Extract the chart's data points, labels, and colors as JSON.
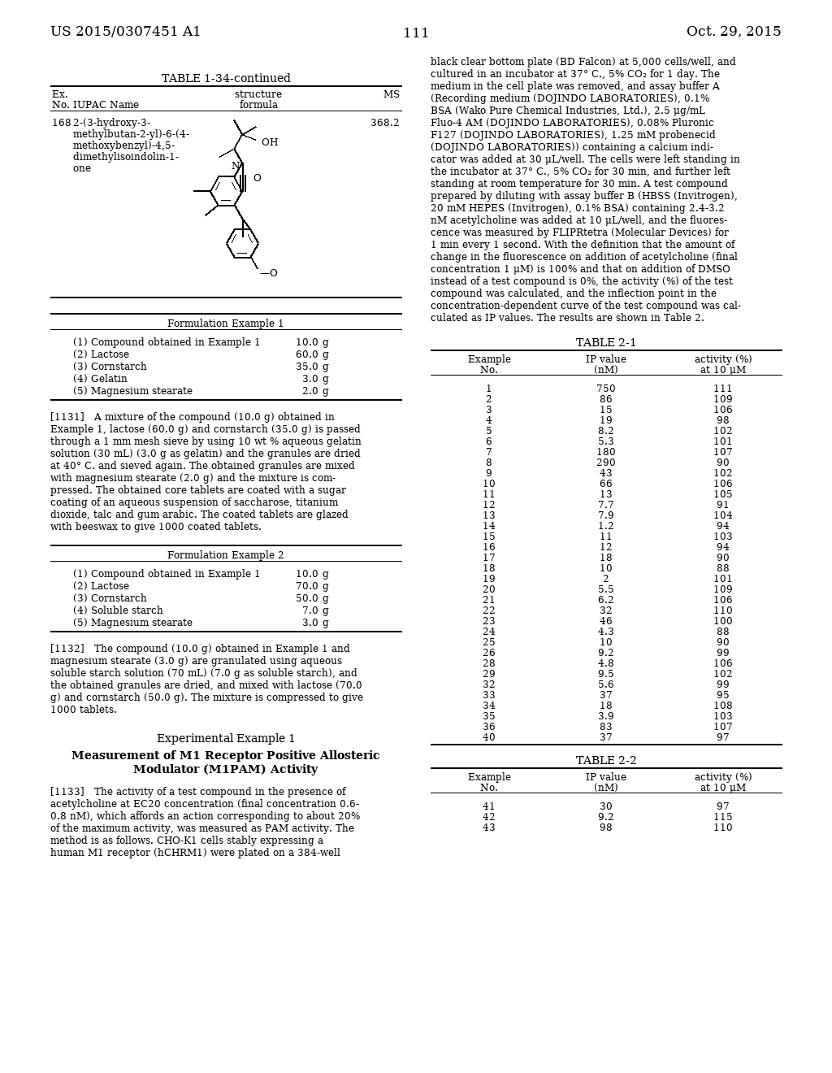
{
  "page_number": "111",
  "patent_number": "US 2015/0307451 A1",
  "date": "Oct. 29, 2015",
  "bg_color": "#ffffff",
  "table1_title": "TABLE 1-34-continued",
  "table1_row_ex": "168",
  "table1_row_iupac": [
    "2-(3-hydroxy-3-",
    "methylbutan-2-yl)-6-(4-",
    "methoxybenzyl)-4,5-",
    "dimethylisoindolin-1-",
    "one"
  ],
  "table1_row_ms": "368.2",
  "form1_title": "Formulation Example 1",
  "form1_items": [
    [
      "(1) Compound obtained in Example 1",
      "10.0",
      "g"
    ],
    [
      "(2) Lactose",
      "60.0",
      "g"
    ],
    [
      "(3) Cornstarch",
      "35.0",
      "g"
    ],
    [
      "(4) Gelatin",
      "3.0",
      "g"
    ],
    [
      "(5) Magnesium stearate",
      "2.0",
      "g"
    ]
  ],
  "para1131_lines": [
    "[1131]   A mixture of the compound (10.0 g) obtained in",
    "Example 1, lactose (60.0 g) and cornstarch (35.0 g) is passed",
    "through a 1 mm mesh sieve by using 10 wt % aqueous gelatin",
    "solution (30 mL) (3.0 g as gelatin) and the granules are dried",
    "at 40° C. and sieved again. The obtained granules are mixed",
    "with magnesium stearate (2.0 g) and the mixture is com-",
    "pressed. The obtained core tablets are coated with a sugar",
    "coating of an aqueous suspension of saccharose, titanium",
    "dioxide, talc and gum arabic. The coated tablets are glazed",
    "with beeswax to give 1000 coated tablets."
  ],
  "form2_title": "Formulation Example 2",
  "form2_items": [
    [
      "(1) Compound obtained in Example 1",
      "10.0",
      "g"
    ],
    [
      "(2) Lactose",
      "70.0",
      "g"
    ],
    [
      "(3) Cornstarch",
      "50.0",
      "g"
    ],
    [
      "(4) Soluble starch",
      "7.0",
      "g"
    ],
    [
      "(5) Magnesium stearate",
      "3.0",
      "g"
    ]
  ],
  "para1132_lines": [
    "[1132]   The compound (10.0 g) obtained in Example 1 and",
    "magnesium stearate (3.0 g) are granulated using aqueous",
    "soluble starch solution (70 mL) (7.0 g as soluble starch), and",
    "the obtained granules are dried, and mixed with lactose (70.0",
    "g) and cornstarch (50.0 g). The mixture is compressed to give",
    "1000 tablets."
  ],
  "exp_example_title": "Experimental Example 1",
  "exp_subtitle_lines": [
    "Measurement of M1 Receptor Positive Allosteric",
    "Modulator (M1PAM) Activity"
  ],
  "para1133_lines": [
    "[1133]   The activity of a test compound in the presence of",
    "acetylcholine at EC20 concentration (final concentration 0.6-",
    "0.8 nM), which affords an action corresponding to about 20%",
    "of the maximum activity, was measured as PAM activity. The",
    "method is as follows. CHO-K1 cells stably expressing a",
    "human M1 receptor (hCHRM1) were plated on a 384-well"
  ],
  "right_para_lines": [
    "black clear bottom plate (BD Falcon) at 5,000 cells/well, and",
    "cultured in an incubator at 37° C., 5% CO₂ for 1 day. The",
    "medium in the cell plate was removed, and assay buffer A",
    "(Recording medium (DOJINDO LABORATORIES), 0.1%",
    "BSA (Wako Pure Chemical Industries, Ltd.), 2.5 μg/mL",
    "Fluo-4 AM (DOJINDO LABORATORIES), 0.08% Pluronic",
    "F127 (DOJINDO LABORATORIES), 1.25 mM probenecid",
    "(DOJINDO LABORATORIES)) containing a calcium indi-",
    "cator was added at 30 μL/well. The cells were left standing in",
    "the incubator at 37° C., 5% CO₂ for 30 min, and further left",
    "standing at room temperature for 30 min. A test compound",
    "prepared by diluting with assay buffer B (HBSS (Invitrogen),",
    "20 mM HEPES (Invitrogen), 0.1% BSA) containing 2.4-3.2",
    "nM acetylcholine was added at 10 μL/well, and the fluores-",
    "cence was measured by FLIPRtetra (Molecular Devices) for",
    "1 min every 1 second. With the definition that the amount of",
    "change in the fluorescence on addition of acetylcholine (final",
    "concentration 1 μM) is 100% and that on addition of DMSO",
    "instead of a test compound is 0%, the activity (%) of the test",
    "compound was calculated, and the inflection point in the",
    "concentration-dependent curve of the test compound was cal-",
    "culated as IP values. The results are shown in Table 2."
  ],
  "table21_title": "TABLE 2-1",
  "table21_data": [
    [
      1,
      750,
      111
    ],
    [
      2,
      86,
      109
    ],
    [
      3,
      15,
      106
    ],
    [
      4,
      19,
      98
    ],
    [
      5,
      "8.2",
      102
    ],
    [
      6,
      "5.3",
      101
    ],
    [
      7,
      180,
      107
    ],
    [
      8,
      290,
      90
    ],
    [
      9,
      43,
      102
    ],
    [
      10,
      66,
      106
    ],
    [
      11,
      13,
      105
    ],
    [
      12,
      "7.7",
      91
    ],
    [
      13,
      "7.9",
      104
    ],
    [
      14,
      "1.2",
      94
    ],
    [
      15,
      11,
      103
    ],
    [
      16,
      12,
      94
    ],
    [
      17,
      18,
      90
    ],
    [
      18,
      10,
      88
    ],
    [
      19,
      2,
      101
    ],
    [
      20,
      "5.5",
      109
    ],
    [
      21,
      "6.2",
      106
    ],
    [
      22,
      32,
      110
    ],
    [
      23,
      46,
      100
    ],
    [
      24,
      "4.3",
      88
    ],
    [
      25,
      10,
      90
    ],
    [
      26,
      "9.2",
      99
    ],
    [
      28,
      "4.8",
      106
    ],
    [
      29,
      "9.5",
      102
    ],
    [
      32,
      "5.6",
      99
    ],
    [
      33,
      37,
      95
    ],
    [
      34,
      18,
      108
    ],
    [
      35,
      "3.9",
      103
    ],
    [
      36,
      83,
      107
    ],
    [
      40,
      37,
      97
    ]
  ],
  "table22_title": "TABLE 2-2",
  "table22_data_start": [
    [
      41,
      30,
      97
    ],
    [
      42,
      "9.2",
      115
    ],
    [
      43,
      98,
      110
    ]
  ]
}
